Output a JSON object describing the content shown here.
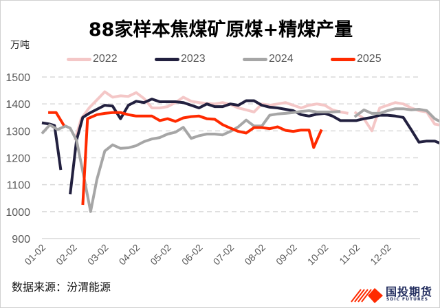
{
  "title": "88家样本焦煤矿原煤+精煤产量",
  "unit_label": "万吨",
  "source": "数据来源：汾渭能源",
  "logo": {
    "name": "国投期货",
    "sub": "SDIC FUTURES"
  },
  "legend": [
    {
      "label": "2022",
      "color": "#f4c7c7"
    },
    {
      "label": "2023",
      "color": "#22203f"
    },
    {
      "label": "2024",
      "color": "#a6a6a6"
    },
    {
      "label": "2025",
      "color": "#ff2a00"
    }
  ],
  "chart_data": {
    "type": "line",
    "title": "88家样本焦煤矿原煤+精煤产量",
    "ylabel": "万吨",
    "xlabel": "",
    "ylim": [
      900,
      1500
    ],
    "yticks": [
      900,
      1000,
      1100,
      1200,
      1300,
      1400,
      1500
    ],
    "x_tick_labels": [
      "01-02",
      "02-02",
      "03-02",
      "04-02",
      "05-02",
      "06-02",
      "07-02",
      "08-02",
      "09-02",
      "10-02",
      "11-02",
      "12-02"
    ],
    "grid": true,
    "legend_position": "top",
    "x_units": "months since 01-02",
    "series": [
      {
        "name": "2022",
        "color": "#f4c7c7",
        "segments": [
          [
            [
              1.05,
              1265
            ],
            [
              1.25,
              1345
            ],
            [
              1.5,
              1385
            ],
            [
              1.75,
              1415
            ],
            [
              2.0,
              1445
            ],
            [
              2.25,
              1425
            ],
            [
              2.5,
              1430
            ],
            [
              2.75,
              1428
            ],
            [
              3.0,
              1442
            ],
            [
              3.25,
              1420
            ],
            [
              3.5,
              1385
            ],
            [
              3.75,
              1385
            ],
            [
              4.0,
              1390
            ],
            [
              4.25,
              1405
            ],
            [
              4.5,
              1425
            ],
            [
              4.75,
              1410
            ],
            [
              5.0,
              1405
            ],
            [
              5.25,
              1402
            ],
            [
              5.5,
              1400
            ],
            [
              5.75,
              1405
            ],
            [
              6.0,
              1398
            ],
            [
              6.25,
              1385
            ],
            [
              6.5,
              1378
            ],
            [
              6.75,
              1370
            ],
            [
              7.0,
              1400
            ],
            [
              7.25,
              1395
            ],
            [
              7.5,
              1400
            ],
            [
              7.75,
              1405
            ],
            [
              8.0,
              1395
            ],
            [
              8.25,
              1385
            ],
            [
              8.5,
              1395
            ],
            [
              8.75,
              1400
            ],
            [
              9.0,
              1395
            ],
            [
              9.25,
              1378
            ],
            [
              9.5,
              1370
            ],
            [
              9.75,
              1365
            ]
          ],
          [
            [
              9.95,
              1370
            ],
            [
              10.25,
              1345
            ],
            [
              10.5,
              1300
            ],
            [
              10.75,
              1385
            ],
            [
              11.0,
              1395
            ],
            [
              11.25,
              1405
            ],
            [
              11.5,
              1400
            ],
            [
              11.75,
              1385
            ],
            [
              12.0,
              1375
            ],
            [
              12.25,
              1370
            ],
            [
              12.5,
              1325
            ],
            [
              12.75,
              1320
            ]
          ]
        ]
      },
      {
        "name": "2023",
        "color": "#22203f",
        "segments": [
          [
            [
              0.0,
              1330
            ],
            [
              0.25,
              1325
            ],
            [
              0.4,
              1320
            ],
            [
              0.6,
              1155
            ]
          ],
          [
            [
              0.9,
              1065
            ],
            [
              1.1,
              1265
            ],
            [
              1.3,
              1350
            ],
            [
              1.5,
              1365
            ],
            [
              1.75,
              1380
            ],
            [
              2.0,
              1395
            ],
            [
              2.25,
              1392
            ],
            [
              2.5,
              1345
            ],
            [
              2.75,
              1395
            ],
            [
              3.0,
              1410
            ],
            [
              3.25,
              1405
            ],
            [
              3.5,
              1418
            ],
            [
              3.75,
              1408
            ],
            [
              4.0,
              1408
            ],
            [
              4.25,
              1408
            ],
            [
              4.5,
              1405
            ],
            [
              4.75,
              1395
            ],
            [
              5.0,
              1385
            ],
            [
              5.25,
              1400
            ],
            [
              5.5,
              1390
            ],
            [
              5.75,
              1390
            ],
            [
              6.0,
              1400
            ],
            [
              6.25,
              1395
            ],
            [
              6.5,
              1412
            ],
            [
              6.75,
              1412
            ],
            [
              7.0,
              1395
            ],
            [
              7.25,
              1388
            ],
            [
              7.5,
              1385
            ],
            [
              7.75,
              1380
            ],
            [
              8.0,
              1375
            ],
            [
              8.25,
              1360
            ],
            [
              8.5,
              1355
            ],
            [
              8.75,
              1362
            ],
            [
              9.0,
              1365
            ],
            [
              9.25,
              1355
            ],
            [
              9.5,
              1338
            ],
            [
              9.75,
              1338
            ],
            [
              10.0,
              1338
            ],
            [
              10.25,
              1345
            ],
            [
              10.5,
              1350
            ],
            [
              10.75,
              1358
            ],
            [
              11.0,
              1358
            ],
            [
              11.25,
              1355
            ],
            [
              11.5,
              1350
            ],
            [
              11.75,
              1305
            ],
            [
              12.0,
              1258
            ],
            [
              12.25,
              1262
            ],
            [
              12.5,
              1262
            ],
            [
              12.75,
              1250
            ]
          ]
        ]
      },
      {
        "name": "2024",
        "color": "#a6a6a6",
        "segments": [
          [
            [
              0.0,
              1290
            ],
            [
              0.25,
              1322
            ],
            [
              0.5,
              1305
            ],
            [
              0.75,
              1318
            ],
            [
              0.9,
              1310
            ],
            [
              1.1,
              1265
            ],
            [
              1.35,
              1120
            ],
            [
              1.55,
              1000
            ],
            [
              1.75,
              1120
            ],
            [
              2.0,
              1225
            ],
            [
              2.25,
              1248
            ],
            [
              2.5,
              1235
            ],
            [
              2.75,
              1237
            ],
            [
              3.0,
              1245
            ],
            [
              3.25,
              1260
            ],
            [
              3.5,
              1270
            ],
            [
              3.75,
              1275
            ],
            [
              4.0,
              1288
            ],
            [
              4.25,
              1295
            ],
            [
              4.5,
              1313
            ],
            [
              4.75,
              1272
            ],
            [
              5.0,
              1282
            ],
            [
              5.25,
              1288
            ],
            [
              5.5,
              1288
            ],
            [
              5.75,
              1285
            ],
            [
              6.0,
              1298
            ],
            [
              6.25,
              1315
            ],
            [
              6.5,
              1340
            ],
            [
              6.75,
              1318
            ],
            [
              7.0,
              1318
            ],
            [
              7.25,
              1358
            ],
            [
              7.5,
              1363
            ],
            [
              7.75,
              1365
            ],
            [
              8.0,
              1368
            ],
            [
              8.25,
              1372
            ],
            [
              8.5,
              1375
            ],
            [
              8.75,
              1370
            ],
            [
              9.0,
              1370
            ],
            [
              9.25,
              1370
            ],
            [
              9.5,
              1372
            ]
          ],
          [
            [
              9.95,
              1352
            ],
            [
              10.25,
              1378
            ],
            [
              10.5,
              1365
            ],
            [
              10.75,
              1365
            ],
            [
              11.0,
              1375
            ],
            [
              11.25,
              1382
            ],
            [
              11.5,
              1382
            ],
            [
              11.75,
              1378
            ],
            [
              12.0,
              1380
            ],
            [
              12.25,
              1375
            ],
            [
              12.5,
              1345
            ],
            [
              12.75,
              1330
            ]
          ]
        ]
      },
      {
        "name": "2025",
        "color": "#ff2a00",
        "segments": [
          [
            [
              0.2,
              1368
            ],
            [
              0.45,
              1368
            ],
            [
              0.7,
              1320
            ]
          ],
          [
            [
              1.3,
              1025
            ],
            [
              1.45,
              1345
            ],
            [
              1.75,
              1360
            ],
            [
              2.0,
              1365
            ],
            [
              2.25,
              1368
            ],
            [
              2.5,
              1368
            ],
            [
              2.75,
              1360
            ],
            [
              3.0,
              1355
            ],
            [
              3.25,
              1355
            ],
            [
              3.5,
              1355
            ],
            [
              3.75,
              1338
            ],
            [
              4.0,
              1345
            ],
            [
              4.25,
              1335
            ],
            [
              4.5,
              1348
            ],
            [
              4.75,
              1353
            ],
            [
              5.0,
              1355
            ],
            [
              5.25,
              1345
            ],
            [
              5.5,
              1343
            ],
            [
              5.75,
              1323
            ],
            [
              6.0,
              1310
            ],
            [
              6.25,
              1298
            ],
            [
              6.5,
              1292
            ],
            [
              6.75,
              1312
            ],
            [
              7.0,
              1312
            ],
            [
              7.25,
              1308
            ],
            [
              7.5,
              1315
            ],
            [
              7.75,
              1302
            ],
            [
              8.0,
              1298
            ],
            [
              8.25,
              1303
            ],
            [
              8.5,
              1303
            ],
            [
              8.65,
              1238
            ],
            [
              8.9,
              1305
            ]
          ]
        ]
      }
    ]
  }
}
